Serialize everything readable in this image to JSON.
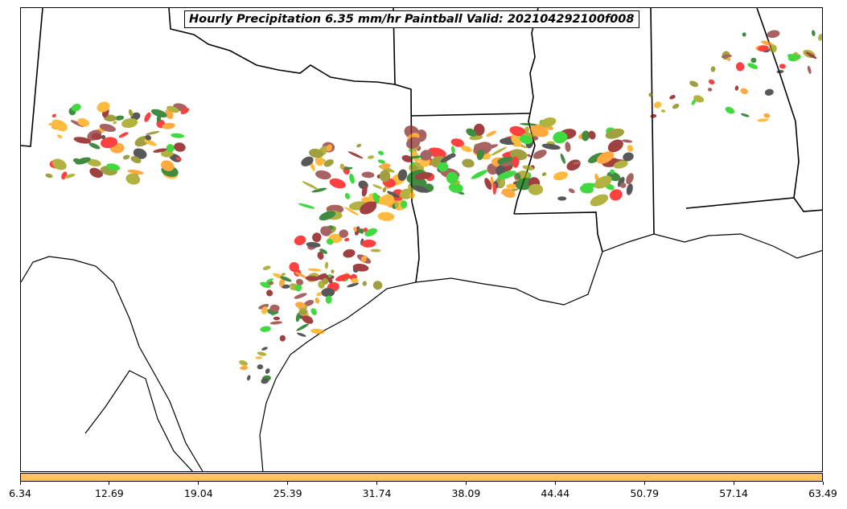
{
  "title": "Hourly Precipitation 6.35 mm/hr Paintball Valid: 202104292100f008",
  "colorbar": {
    "color": "#ffc266",
    "ticks": [
      "6.34",
      "12.69",
      "19.04",
      "25.39",
      "31.74",
      "38.09",
      "44.44",
      "50.79",
      "57.14",
      "63.49"
    ]
  },
  "member_colors": [
    "#ff0000",
    "#ff8c00",
    "#ffa500",
    "#00cc00",
    "#006400",
    "#808000",
    "#999900",
    "#800000",
    "#8b2e2e",
    "#202020"
  ]
}
